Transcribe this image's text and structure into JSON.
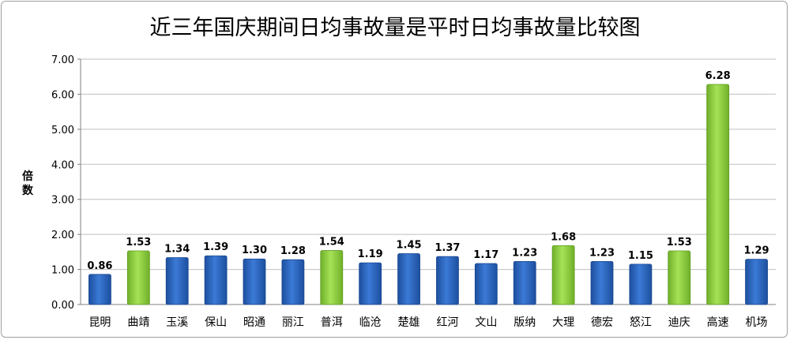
{
  "chart_data": {
    "type": "bar",
    "title": "近三年国庆期间日均事故量是平时日均事故量比较图",
    "xlabel": "",
    "ylabel": "倍数",
    "ylim": [
      0,
      7
    ],
    "yticks": [
      "0.00",
      "1.00",
      "2.00",
      "3.00",
      "4.00",
      "5.00",
      "6.00",
      "7.00"
    ],
    "grid": true,
    "categories": [
      "昆明",
      "曲靖",
      "玉溪",
      "保山",
      "昭通",
      "丽江",
      "普洱",
      "临沧",
      "楚雄",
      "红河",
      "文山",
      "版纳",
      "大理",
      "德宏",
      "怒江",
      "迪庆",
      "高速",
      "机场"
    ],
    "values": [
      0.86,
      1.53,
      1.34,
      1.39,
      1.3,
      1.28,
      1.54,
      1.19,
      1.45,
      1.37,
      1.17,
      1.23,
      1.68,
      1.23,
      1.15,
      1.53,
      6.28,
      1.29
    ],
    "value_labels": [
      "0.86",
      "1.53",
      "1.34",
      "1.39",
      "1.30",
      "1.28",
      "1.54",
      "1.19",
      "1.45",
      "1.37",
      "1.17",
      "1.23",
      "1.68",
      "1.23",
      "1.15",
      "1.53",
      "6.28",
      "1.29"
    ],
    "highlight": [
      false,
      true,
      false,
      false,
      false,
      false,
      true,
      false,
      false,
      false,
      false,
      false,
      true,
      false,
      false,
      true,
      true,
      false
    ],
    "colors": {
      "default": "#2e67c0",
      "highlight": "#8fd13f",
      "grid": "#bfbfbf"
    }
  }
}
